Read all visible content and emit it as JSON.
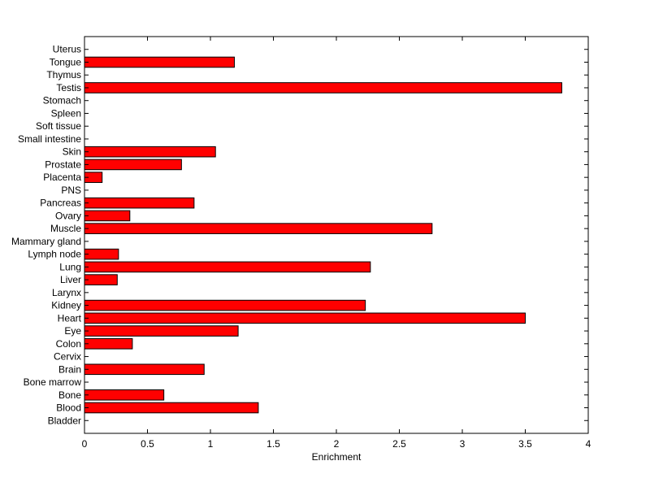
{
  "chart_data": {
    "type": "bar",
    "orientation": "horizontal",
    "title": "",
    "xlabel": "Enrichment",
    "ylabel": "",
    "xlim": [
      0,
      4
    ],
    "xticks": [
      0,
      0.5,
      1,
      1.5,
      2,
      2.5,
      3,
      3.5,
      4
    ],
    "xtick_labels": [
      "0",
      "0.5",
      "1",
      "1.5",
      "2",
      "2.5",
      "3",
      "3.5",
      "4"
    ],
    "grid": false,
    "legend": "none",
    "bar_color": "#ff0000",
    "categories": [
      "Bladder",
      "Blood",
      "Bone",
      "Bone marrow",
      "Brain",
      "Cervix",
      "Colon",
      "Eye",
      "Heart",
      "Kidney",
      "Larynx",
      "Liver",
      "Lung",
      "Lymph node",
      "Mammary gland",
      "Muscle",
      "Ovary",
      "Pancreas",
      "PNS",
      "Placenta",
      "Prostate",
      "Skin",
      "Small intestine",
      "Soft tissue",
      "Spleen",
      "Stomach",
      "Testis",
      "Thymus",
      "Tongue",
      "Uterus"
    ],
    "values": [
      0,
      1.38,
      0.63,
      0,
      0.95,
      0,
      0.38,
      1.22,
      3.5,
      2.23,
      0,
      0.26,
      2.27,
      0.27,
      0,
      2.76,
      0.36,
      0.87,
      0,
      0.14,
      0.77,
      1.04,
      0,
      0,
      0,
      0,
      3.79,
      0,
      1.19,
      0
    ]
  }
}
